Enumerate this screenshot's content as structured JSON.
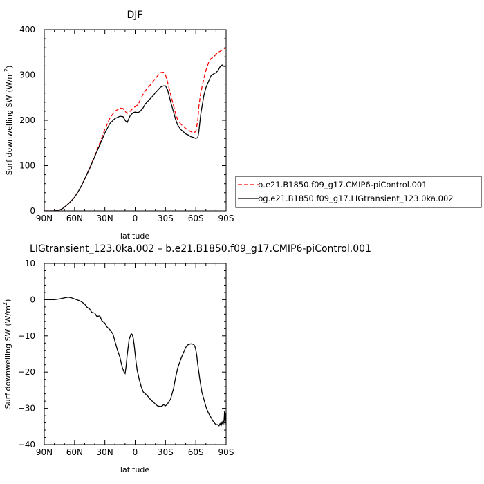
{
  "chart_data": [
    {
      "type": "line",
      "title": "DJF",
      "xlabel": "latitude",
      "ylabel": "Surf downwelling SW",
      "ylabel_unit": "(W/m",
      "ylabel_unit_sup": "2",
      "ylabel_unit_close": ")",
      "xlim": [
        90,
        -90
      ],
      "ylim": [
        0,
        400
      ],
      "x_ticks": [
        90,
        60,
        30,
        0,
        -30,
        -60,
        -90
      ],
      "x_tick_labels": [
        "90N",
        "60N",
        "30N",
        "0",
        "30S",
        "60S",
        "90S"
      ],
      "y_ticks": [
        0,
        100,
        200,
        300,
        400
      ],
      "y_tick_labels": [
        "0",
        "100",
        "200",
        "300",
        "400"
      ],
      "legend": "right",
      "series": [
        {
          "name": "b.e21.B1850.f09_g17.CMIP6-piControl.001",
          "color": "#ff0000",
          "dash": "dashed",
          "x": [
            90,
            85,
            80,
            75,
            72,
            68,
            65,
            60,
            55,
            50,
            45,
            40,
            35,
            30,
            25,
            20,
            15,
            12,
            10,
            8,
            5,
            2,
            0,
            -3,
            -5,
            -8,
            -10,
            -13,
            -15,
            -18,
            -20,
            -23,
            -25,
            -28,
            -30,
            -32,
            -35,
            -38,
            -40,
            -42,
            -45,
            -48,
            -50,
            -53,
            -55,
            -58,
            -60,
            -62,
            -63,
            -65,
            -68,
            -70,
            -73,
            -75,
            -78,
            -80,
            -82,
            -84,
            -86,
            -88,
            -90
          ],
          "y": [
            0,
            0,
            0,
            2,
            5,
            12,
            18,
            30,
            48,
            70,
            95,
            122,
            150,
            180,
            205,
            220,
            227,
            226,
            220,
            215,
            220,
            227,
            230,
            235,
            245,
            258,
            265,
            273,
            278,
            287,
            292,
            300,
            305,
            306,
            300,
            285,
            258,
            232,
            215,
            202,
            192,
            186,
            182,
            178,
            175,
            173,
            175,
            200,
            230,
            262,
            292,
            310,
            330,
            336,
            340,
            346,
            350,
            352,
            355,
            358,
            360
          ]
        },
        {
          "name": "bg.e21.B1850.f09_g17.LIGtransient_123.0ka.002",
          "color": "#000000",
          "dash": "solid",
          "x": [
            90,
            85,
            80,
            75,
            72,
            68,
            65,
            60,
            55,
            50,
            45,
            40,
            35,
            30,
            25,
            20,
            15,
            12,
            10,
            8,
            5,
            2,
            0,
            -3,
            -5,
            -8,
            -10,
            -13,
            -15,
            -18,
            -20,
            -23,
            -25,
            -28,
            -30,
            -32,
            -35,
            -38,
            -40,
            -42,
            -45,
            -48,
            -50,
            -53,
            -55,
            -58,
            -60,
            -62,
            -63,
            -65,
            -68,
            -70,
            -73,
            -75,
            -78,
            -80,
            -82,
            -84,
            -86,
            -88,
            -90
          ],
          "y": [
            0,
            0,
            0,
            2,
            5,
            12,
            18,
            30,
            48,
            70,
            94,
            120,
            146,
            172,
            193,
            204,
            209,
            208,
            200,
            195,
            210,
            217,
            218,
            217,
            220,
            228,
            236,
            243,
            248,
            255,
            261,
            268,
            273,
            276,
            276,
            268,
            242,
            218,
            202,
            190,
            180,
            174,
            170,
            167,
            164,
            162,
            160,
            162,
            175,
            215,
            255,
            272,
            288,
            298,
            303,
            305,
            310,
            318,
            322,
            319,
            320
          ]
        }
      ]
    },
    {
      "type": "line",
      "title": "LIGtransient_123.0ka.002 – b.e21.B1850.f09_g17.CMIP6-piControl.001",
      "xlabel": "latitude",
      "ylabel": "Surf downwelling SW",
      "ylabel_unit": "(W/m",
      "ylabel_unit_sup": "2",
      "ylabel_unit_close": ")",
      "xlim": [
        90,
        -90
      ],
      "ylim": [
        -40,
        10
      ],
      "x_ticks": [
        90,
        60,
        30,
        0,
        -30,
        -60,
        -90
      ],
      "x_tick_labels": [
        "90N",
        "60N",
        "30N",
        "0",
        "30S",
        "60S",
        "90S"
      ],
      "y_ticks": [
        -40,
        -30,
        -20,
        -10,
        0,
        10
      ],
      "y_tick_labels": [
        "−40",
        "−30",
        "−20",
        "−10",
        "0",
        "10"
      ],
      "series": [
        {
          "color": "#000000",
          "dash": "solid",
          "x": [
            90,
            85,
            80,
            75,
            70,
            66,
            63,
            60,
            58,
            55,
            53,
            50,
            48,
            45,
            43,
            40,
            38,
            35,
            33,
            30,
            28,
            25,
            22,
            20,
            18,
            15,
            13,
            11,
            10,
            9,
            8,
            6,
            4,
            3,
            2,
            1,
            0,
            -1,
            -2,
            -4,
            -6,
            -8,
            -10,
            -12,
            -15,
            -18,
            -20,
            -22,
            -25,
            -27,
            -28,
            -30,
            -32,
            -33,
            -35,
            -38,
            -40,
            -42,
            -45,
            -48,
            -50,
            -52,
            -55,
            -57,
            -58,
            -59,
            -60,
            -61,
            -62,
            -64,
            -66,
            -68,
            -70,
            -72,
            -75,
            -77,
            -79,
            -80,
            -82,
            -83,
            -84,
            -85,
            -86,
            -87,
            -88,
            -88.5,
            -89,
            -89.5,
            -90
          ],
          "y": [
            0,
            0,
            0,
            0.2,
            0.5,
            0.7,
            0.5,
            0.2,
            0,
            -0.3,
            -0.6,
            -1.2,
            -2.0,
            -2.6,
            -3.5,
            -3.7,
            -4.6,
            -4.5,
            -5.8,
            -6.5,
            -7.5,
            -8.3,
            -9.5,
            -11.5,
            -13.5,
            -16,
            -18.5,
            -20,
            -20.4,
            -18.5,
            -15.5,
            -11,
            -9.4,
            -9.6,
            -10.5,
            -12.5,
            -15,
            -17.5,
            -19.5,
            -22,
            -24,
            -25.5,
            -26,
            -26.5,
            -27.5,
            -28.3,
            -28.8,
            -29.3,
            -29.5,
            -29.3,
            -29.0,
            -29.3,
            -28.8,
            -28.3,
            -27.5,
            -24.5,
            -21.5,
            -19,
            -16.5,
            -14.5,
            -13.2,
            -12.5,
            -12.2,
            -12.3,
            -12.4,
            -12.8,
            -13.8,
            -15.5,
            -18,
            -22,
            -25.5,
            -27.5,
            -29.5,
            -31,
            -32.5,
            -33.5,
            -34.2,
            -34.5,
            -34.5,
            -34.8,
            -34.2,
            -34.8,
            -33.8,
            -34.5,
            -33.2,
            -30.8,
            -34.5,
            -31.2,
            -32.5
          ]
        }
      ]
    }
  ]
}
